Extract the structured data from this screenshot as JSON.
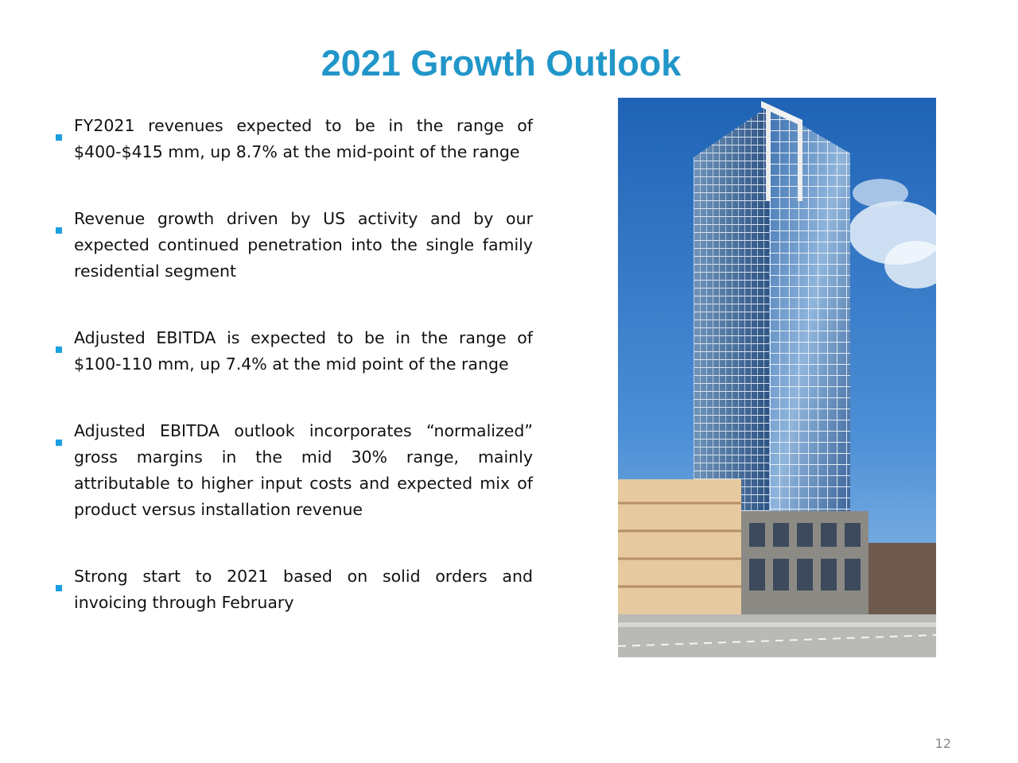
{
  "slide": {
    "title": "2021 Growth Outlook",
    "page_number": "12",
    "accent_color": "#2196c9",
    "bullet_color": "#1aa0e0"
  },
  "bullets": [
    {
      "text": "FY2021 revenues expected to be in the range of $400-$415 mm, up 8.7% at the mid-point of the range"
    },
    {
      "text": "Revenue growth driven by US activity and by our expected continued penetration into the single family residential segment"
    },
    {
      "text": "Adjusted EBITDA is expected to be in the range of $100-110 mm, up 7.4% at the mid point of the range"
    },
    {
      "text": "Adjusted EBITDA outlook incorporates “normalized” gross margins in the mid 30% range, mainly attributable to higher input costs and expected mix of product versus installation revenue"
    },
    {
      "text": "Strong start to 2021 based on solid orders and invoicing through February"
    }
  ],
  "photo": {
    "subject": "high-rise-glass-tower-photo"
  }
}
